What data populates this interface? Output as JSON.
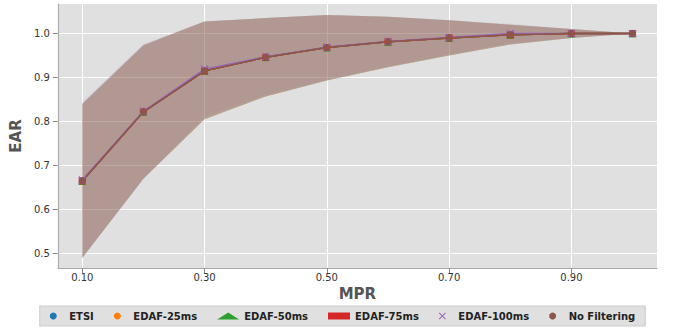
{
  "chart_data": {
    "type": "line",
    "x_label": "MPR",
    "y_label": "EAR",
    "xlim": [
      0.06,
      1.04
    ],
    "ylim": [
      0.467,
      1.067
    ],
    "xticks": [
      {
        "value": 0.1,
        "label": "0.10"
      },
      {
        "value": 0.3,
        "label": "0.30"
      },
      {
        "value": 0.5,
        "label": "0.50"
      },
      {
        "value": 0.7,
        "label": "0.70"
      },
      {
        "value": 0.9,
        "label": "0.90"
      }
    ],
    "yticks": [
      0.5,
      0.6,
      0.7,
      0.8,
      0.9,
      {
        "value": 1,
        "label": "1.0"
      }
    ],
    "grid": true,
    "legend": "bottom",
    "x": [
      0.1,
      0.2,
      0.3,
      0.4,
      0.5,
      0.6,
      0.7,
      0.8,
      0.9,
      1.0
    ],
    "series": [
      {
        "name": "ETSI",
        "color": "#1f77b4",
        "marker": "point",
        "values": [
          0.665,
          0.822,
          0.915,
          0.946,
          0.968,
          0.981,
          0.99,
          0.997,
          1.0,
          1.0
        ],
        "lower": [
          0.49,
          0.67,
          0.805,
          0.857,
          0.893,
          0.923,
          0.95,
          0.975,
          0.99,
          1.0
        ],
        "upper": [
          0.84,
          0.973,
          1.027,
          1.035,
          1.042,
          1.038,
          1.03,
          1.02,
          1.01,
          1.0
        ]
      },
      {
        "name": "EDAF-25ms",
        "color": "#ff7f0e",
        "marker": "circle",
        "values": [
          0.665,
          0.822,
          0.915,
          0.946,
          0.968,
          0.981,
          0.99,
          0.997,
          1.0,
          1.0
        ],
        "lower": [
          0.49,
          0.67,
          0.805,
          0.857,
          0.893,
          0.923,
          0.95,
          0.975,
          0.99,
          1.0
        ],
        "upper": [
          0.84,
          0.973,
          1.027,
          1.035,
          1.042,
          1.038,
          1.03,
          1.02,
          1.01,
          1.0
        ]
      },
      {
        "name": "EDAF-50ms",
        "color": "#2ca02c",
        "marker": "triangle",
        "values": [
          0.665,
          0.822,
          0.915,
          0.946,
          0.968,
          0.981,
          0.99,
          0.997,
          1.0,
          1.0
        ],
        "lower": [
          0.49,
          0.67,
          0.805,
          0.857,
          0.893,
          0.923,
          0.95,
          0.975,
          0.99,
          1.0
        ],
        "upper": [
          0.84,
          0.973,
          1.027,
          1.035,
          1.042,
          1.038,
          1.03,
          1.02,
          1.01,
          1.0
        ]
      },
      {
        "name": "EDAF-75ms",
        "color": "#d62728",
        "marker": "square",
        "values": [
          0.665,
          0.822,
          0.915,
          0.946,
          0.968,
          0.981,
          0.99,
          0.997,
          1.0,
          1.0
        ],
        "lower": [
          0.49,
          0.67,
          0.805,
          0.857,
          0.893,
          0.923,
          0.95,
          0.975,
          0.99,
          1.0
        ],
        "upper": [
          0.84,
          0.973,
          1.027,
          1.035,
          1.042,
          1.038,
          1.03,
          1.02,
          1.01,
          1.0
        ]
      },
      {
        "name": "EDAF-100ms",
        "color": "#9467bd",
        "marker": "x",
        "values": [
          0.667,
          0.823,
          0.919,
          0.947,
          0.969,
          0.982,
          0.991,
          1.0,
          1.0,
          1.0
        ],
        "lower": [
          0.49,
          0.67,
          0.81,
          0.86,
          0.895,
          0.925,
          0.952,
          0.978,
          0.99,
          1.0
        ],
        "upper": [
          0.844,
          0.976,
          1.028,
          1.035,
          1.042,
          1.038,
          1.03,
          1.022,
          1.01,
          1.0
        ]
      },
      {
        "name": "No Filtering",
        "color": "#8c564b",
        "marker": "circle",
        "values": [
          0.665,
          0.822,
          0.915,
          0.946,
          0.968,
          0.981,
          0.99,
          0.997,
          1.0,
          1.0
        ],
        "lower": [
          0.49,
          0.67,
          0.805,
          0.857,
          0.893,
          0.923,
          0.95,
          0.975,
          0.99,
          1.0
        ],
        "upper": [
          0.84,
          0.973,
          1.027,
          1.035,
          1.042,
          1.038,
          1.03,
          1.02,
          1.01,
          1.0
        ]
      }
    ]
  }
}
